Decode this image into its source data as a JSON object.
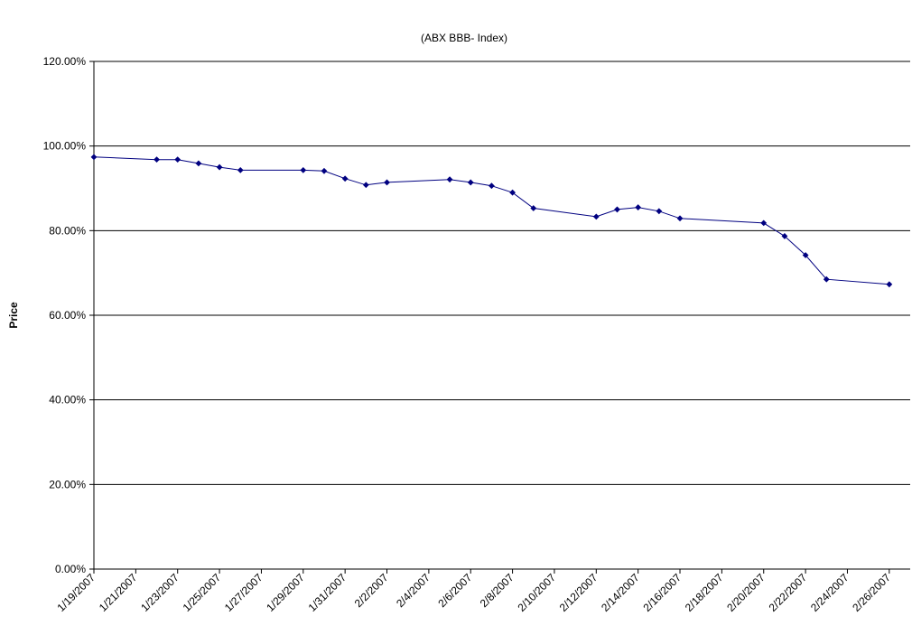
{
  "chart_data": {
    "type": "line",
    "title": "(ABX BBB- Index)",
    "xlabel": "",
    "ylabel": "Price",
    "ylim": [
      0,
      120
    ],
    "yticks": [
      "0.00%",
      "20.00%",
      "40.00%",
      "60.00%",
      "80.00%",
      "100.00%",
      "120.00%"
    ],
    "xlim": [
      "1/19/2007",
      "2/27/2007"
    ],
    "xticks": [
      "1/19/2007",
      "1/21/2007",
      "1/23/2007",
      "1/25/2007",
      "1/27/2007",
      "1/29/2007",
      "1/31/2007",
      "2/2/2007",
      "2/4/2007",
      "2/6/2007",
      "2/8/2007",
      "2/10/2007",
      "2/12/2007",
      "2/14/2007",
      "2/16/2007",
      "2/18/2007",
      "2/20/2007",
      "2/22/2007",
      "2/24/2007",
      "2/26/2007"
    ],
    "grid": "horizontal",
    "legend": "none",
    "line_color": "#000080",
    "series": [
      {
        "points": [
          {
            "x": "1/19/2007",
            "y": 97.4
          },
          {
            "x": "1/22/2007",
            "y": 96.8
          },
          {
            "x": "1/23/2007",
            "y": 96.8
          },
          {
            "x": "1/24/2007",
            "y": 95.9
          },
          {
            "x": "1/25/2007",
            "y": 95.0
          },
          {
            "x": "1/26/2007",
            "y": 94.3
          },
          {
            "x": "1/29/2007",
            "y": 94.3
          },
          {
            "x": "1/30/2007",
            "y": 94.1
          },
          {
            "x": "1/31/2007",
            "y": 92.3
          },
          {
            "x": "2/1/2007",
            "y": 90.8
          },
          {
            "x": "2/2/2007",
            "y": 91.4
          },
          {
            "x": "2/5/2007",
            "y": 92.1
          },
          {
            "x": "2/6/2007",
            "y": 91.4
          },
          {
            "x": "2/7/2007",
            "y": 90.6
          },
          {
            "x": "2/8/2007",
            "y": 89.0
          },
          {
            "x": "2/9/2007",
            "y": 85.3
          },
          {
            "x": "2/12/2007",
            "y": 83.3
          },
          {
            "x": "2/13/2007",
            "y": 85.0
          },
          {
            "x": "2/14/2007",
            "y": 85.5
          },
          {
            "x": "2/15/2007",
            "y": 84.6
          },
          {
            "x": "2/16/2007",
            "y": 82.9
          },
          {
            "x": "2/20/2007",
            "y": 81.8
          },
          {
            "x": "2/21/2007",
            "y": 78.7
          },
          {
            "x": "2/22/2007",
            "y": 74.2
          },
          {
            "x": "2/23/2007",
            "y": 68.5
          },
          {
            "x": "2/26/2007",
            "y": 67.3
          }
        ]
      }
    ]
  }
}
